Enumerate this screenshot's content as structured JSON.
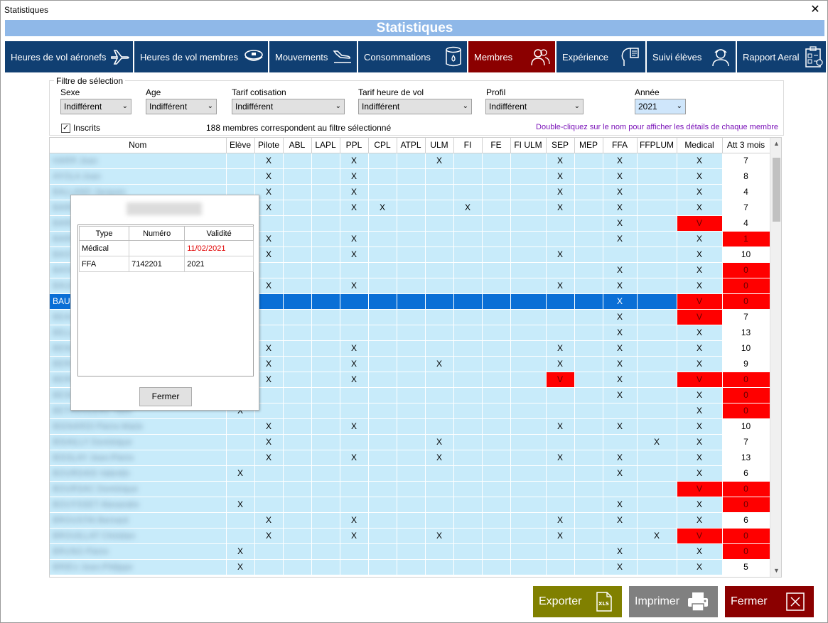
{
  "window": {
    "title": "Statistiques",
    "close": "✕"
  },
  "banner": "Statistiques",
  "tabs": [
    {
      "label": "Heures de vol aéronefs",
      "icon": "plane-icon",
      "active": false
    },
    {
      "label": "Heures de vol membres",
      "icon": "pilot-cap-icon",
      "active": false
    },
    {
      "label": "Mouvements",
      "icon": "landing-icon",
      "active": false
    },
    {
      "label": "Consommations",
      "icon": "fuel-barrel-icon",
      "active": false
    },
    {
      "label": "Membres",
      "icon": "members-icon",
      "active": true
    },
    {
      "label": "Expérience",
      "icon": "head-experience-icon",
      "active": false
    },
    {
      "label": "Suivi élèves",
      "icon": "student-icon",
      "active": false
    },
    {
      "label": "Rapport Aeral",
      "icon": "report-icon",
      "active": false
    }
  ],
  "filter": {
    "legend": "Filtre de sélection",
    "sexe": {
      "label": "Sexe",
      "value": "Indifférent"
    },
    "age": {
      "label": "Age",
      "value": "Indifférent"
    },
    "tarif_cotisation": {
      "label": "Tarif cotisation",
      "value": "Indifférent"
    },
    "tarif_heure": {
      "label": "Tarif heure de vol",
      "value": "Indifférent"
    },
    "profil": {
      "label": "Profil",
      "value": "Indifférent"
    },
    "annee": {
      "label": "Année",
      "value": "2021"
    },
    "inscrits": {
      "label": "Inscrits",
      "checked": true
    },
    "count_text": "188 membres correspondent au filtre sélectionné",
    "hint": "Double-cliquez sur le nom pour afficher les détails de chaque membre"
  },
  "table": {
    "columns": [
      "Nom",
      "Elève",
      "Pilote",
      "ABL",
      "LAPL",
      "PPL",
      "CPL",
      "ATPL",
      "ULM",
      "FI",
      "FE",
      "FI ULM",
      "SEP",
      "MEP",
      "FFA",
      "FFPLUM",
      "Medical",
      "Att 3 mois"
    ],
    "rows": [
      {
        "name": "HARR Jean",
        "cells": [
          "",
          "X",
          "",
          "",
          "X",
          "",
          "",
          "X",
          "",
          "",
          "",
          "X",
          "",
          "X",
          "",
          "X",
          "7"
        ],
        "red": []
      },
      {
        "name": "AYOLA Joan",
        "cells": [
          "",
          "X",
          "",
          "",
          "X",
          "",
          "",
          "",
          "",
          "",
          "",
          "X",
          "",
          "X",
          "",
          "X",
          "8"
        ],
        "red": []
      },
      {
        "name": "BALLAND Jacques",
        "cells": [
          "",
          "X",
          "",
          "",
          "X",
          "",
          "",
          "",
          "",
          "",
          "",
          "X",
          "",
          "X",
          "",
          "X",
          "4"
        ],
        "red": []
      },
      {
        "name": "BARBIER Paul",
        "cells": [
          "",
          "X",
          "",
          "",
          "X",
          "X",
          "",
          "",
          "X",
          "",
          "",
          "X",
          "",
          "X",
          "",
          "X",
          "7"
        ],
        "red": []
      },
      {
        "name": "BARDET Luc",
        "cells": [
          "",
          "",
          "",
          "",
          "",
          "",
          "",
          "",
          "",
          "",
          "",
          "",
          "",
          "X",
          "",
          "V",
          "4"
        ],
        "red": [
          15
        ]
      },
      {
        "name": "BARRE Michel",
        "cells": [
          "",
          "X",
          "",
          "",
          "X",
          "",
          "",
          "",
          "",
          "",
          "",
          "",
          "",
          "X",
          "",
          "X",
          "1"
        ],
        "red": [
          16
        ]
      },
      {
        "name": "BASTIDE Marc",
        "cells": [
          "",
          "X",
          "",
          "",
          "X",
          "",
          "",
          "",
          "",
          "",
          "",
          "X",
          "",
          "",
          "",
          "X",
          "10"
        ],
        "red": []
      },
      {
        "name": "BATAILLE Eric",
        "cells": [
          "",
          "",
          "",
          "",
          "",
          "",
          "",
          "",
          "",
          "",
          "",
          "",
          "",
          "X",
          "",
          "X",
          "0"
        ],
        "red": [
          16
        ]
      },
      {
        "name": "BAUDOIN Henri",
        "cells": [
          "",
          "X",
          "",
          "",
          "X",
          "",
          "",
          "",
          "",
          "",
          "",
          "X",
          "",
          "X",
          "",
          "X",
          "0"
        ],
        "red": [
          16
        ]
      },
      {
        "name": "BAUDRY Alain",
        "cells": [
          "",
          "",
          "",
          "",
          "",
          "",
          "",
          "",
          "",
          "",
          "",
          "",
          "",
          "X",
          "",
          "V",
          "0"
        ],
        "red": [
          15,
          16
        ],
        "selected": true
      },
      {
        "name": "BEAUMONT Pierre",
        "cells": [
          "",
          "",
          "",
          "",
          "",
          "",
          "",
          "",
          "",
          "",
          "",
          "",
          "",
          "X",
          "",
          "V",
          "7"
        ],
        "red": [
          15
        ]
      },
      {
        "name": "BELLIER Jean",
        "cells": [
          "",
          "",
          "",
          "",
          "",
          "",
          "",
          "",
          "",
          "",
          "",
          "",
          "",
          "X",
          "",
          "X",
          "13"
        ],
        "red": []
      },
      {
        "name": "BENOIT Marc",
        "cells": [
          "",
          "X",
          "",
          "",
          "X",
          "",
          "",
          "",
          "",
          "",
          "",
          "X",
          "",
          "X",
          "",
          "X",
          "10"
        ],
        "red": []
      },
      {
        "name": "BERGER Louis",
        "cells": [
          "",
          "X",
          "",
          "",
          "X",
          "",
          "",
          "X",
          "",
          "",
          "",
          "X",
          "",
          "X",
          "",
          "X",
          "9"
        ],
        "red": []
      },
      {
        "name": "BERNARD Paul",
        "cells": [
          "",
          "X",
          "",
          "",
          "X",
          "",
          "",
          "",
          "",
          "",
          "",
          "V",
          "",
          "X",
          "",
          "V",
          "0"
        ],
        "red": [
          11,
          15,
          16
        ]
      },
      {
        "name": "BESNARD Guy",
        "cells": [
          "",
          "",
          "",
          "",
          "",
          "",
          "",
          "",
          "",
          "",
          "",
          "",
          "",
          "X",
          "",
          "X",
          "0"
        ],
        "red": [
          16
        ]
      },
      {
        "name": "BETHOULEAU Yann",
        "cells": [
          "X",
          "",
          "",
          "",
          "",
          "",
          "",
          "",
          "",
          "",
          "",
          "",
          "",
          "",
          "",
          "X",
          "0"
        ],
        "red": [
          16
        ]
      },
      {
        "name": "BIGNARDI Pierre-Marie",
        "cells": [
          "",
          "X",
          "",
          "",
          "X",
          "",
          "",
          "",
          "",
          "",
          "",
          "X",
          "",
          "X",
          "",
          "X",
          "10"
        ],
        "red": []
      },
      {
        "name": "BISAILLY Dominique",
        "cells": [
          "",
          "X",
          "",
          "",
          "",
          "",
          "",
          "X",
          "",
          "",
          "",
          "",
          "",
          "",
          "X",
          "X",
          "7"
        ],
        "red": []
      },
      {
        "name": "BISSLAY Jean-Pierre",
        "cells": [
          "",
          "X",
          "",
          "",
          "X",
          "",
          "",
          "X",
          "",
          "",
          "",
          "X",
          "",
          "X",
          "",
          "X",
          "13"
        ],
        "red": []
      },
      {
        "name": "BOURDAIS Valentin",
        "cells": [
          "X",
          "",
          "",
          "",
          "",
          "",
          "",
          "",
          "",
          "",
          "",
          "",
          "",
          "X",
          "",
          "X",
          "6"
        ],
        "red": []
      },
      {
        "name": "BOURSAC Dominique",
        "cells": [
          "",
          "",
          "",
          "",
          "",
          "",
          "",
          "",
          "",
          "",
          "",
          "",
          "",
          "",
          "",
          "V",
          "0"
        ],
        "red": [
          15,
          16
        ]
      },
      {
        "name": "BOUYSSET Alexandre",
        "cells": [
          "X",
          "",
          "",
          "",
          "",
          "",
          "",
          "",
          "",
          "",
          "",
          "",
          "",
          "X",
          "",
          "X",
          "0"
        ],
        "red": [
          16
        ]
      },
      {
        "name": "BROUSTAI Bernard",
        "cells": [
          "",
          "X",
          "",
          "",
          "X",
          "",
          "",
          "",
          "",
          "",
          "",
          "X",
          "",
          "X",
          "",
          "X",
          "6"
        ],
        "red": []
      },
      {
        "name": "BROUILLAT Christian",
        "cells": [
          "",
          "X",
          "",
          "",
          "X",
          "",
          "",
          "X",
          "",
          "",
          "",
          "X",
          "",
          "",
          "X",
          "V",
          "0"
        ],
        "red": [
          15,
          16
        ]
      },
      {
        "name": "BRUNO Pierre",
        "cells": [
          "X",
          "",
          "",
          "",
          "",
          "",
          "",
          "",
          "",
          "",
          "",
          "",
          "",
          "X",
          "",
          "X",
          "0"
        ],
        "red": [
          16
        ]
      },
      {
        "name": "BRIEU Jean-Philippe",
        "cells": [
          "X",
          "",
          "",
          "",
          "",
          "",
          "",
          "",
          "",
          "",
          "",
          "",
          "",
          "X",
          "",
          "X",
          "5"
        ],
        "red": []
      }
    ]
  },
  "popup": {
    "member_name": "BAUDRY Alain",
    "headers": [
      "Type",
      "Numéro",
      "Validité"
    ],
    "rows": [
      {
        "type": "Médical",
        "numero": "",
        "validite": "11/02/2021",
        "late": true
      },
      {
        "type": "FFA",
        "numero": "7142201",
        "validite": "2021",
        "late": false
      }
    ],
    "close_label": "Fermer"
  },
  "buttons": {
    "export": {
      "label": "Exporter",
      "icon": "xls-file-icon"
    },
    "print": {
      "label": "Imprimer",
      "icon": "printer-icon"
    },
    "close": {
      "label": "Fermer",
      "icon": "close-box-icon"
    }
  },
  "colors": {
    "tab": "#103f72",
    "tab_active": "#8b0000",
    "banner": "#8fb8e8",
    "row": "#c8ebfa",
    "row_selected": "#0a6fd6",
    "alert": "#ff0000",
    "export": "#808000",
    "print": "#808080",
    "close": "#8b0000",
    "hint": "#7a12b8"
  }
}
